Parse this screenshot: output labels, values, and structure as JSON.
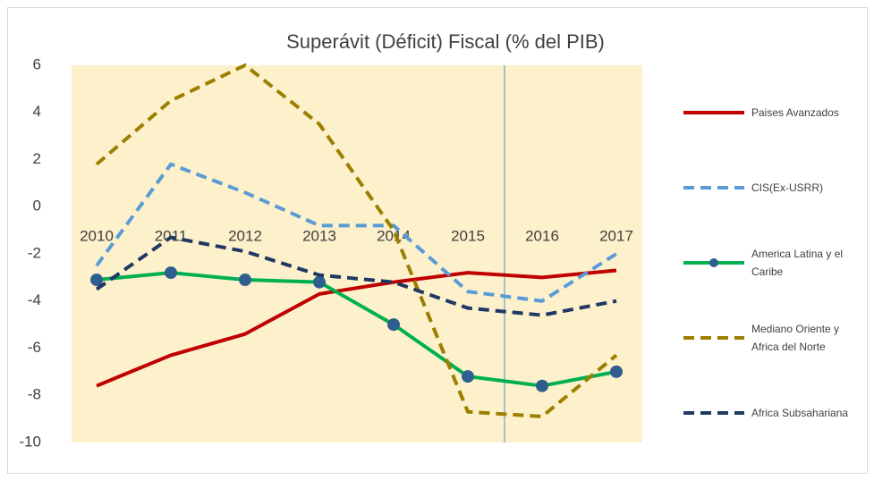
{
  "chart_data": {
    "type": "line",
    "title": "Superávit (Déficit) Fiscal (% del PIB)",
    "categories": [
      "2010",
      "2011",
      "2012",
      "2013",
      "2014",
      "2015",
      "2016",
      "2017"
    ],
    "series": [
      {
        "name": "Paises Avanzados",
        "color": "#c00000",
        "dashed": false,
        "values": [
          -7.6,
          -6.3,
          -5.4,
          -3.7,
          -3.2,
          -2.8,
          -3.0,
          -2.7
        ]
      },
      {
        "name": "CIS(Ex-USRR)",
        "color": "#5b9bd5",
        "dashed": true,
        "values": [
          -2.5,
          1.8,
          0.6,
          -0.8,
          -0.8,
          -3.6,
          -4.0,
          -2.0
        ]
      },
      {
        "name": "America Latina  y el Caribe",
        "color": "#00b050",
        "dashed": false,
        "marker": "circle",
        "marker_color": "#2f5f8f",
        "values": [
          -3.1,
          -2.8,
          -3.1,
          -3.2,
          -5.0,
          -7.2,
          -7.6,
          -7.0
        ]
      },
      {
        "name": "Mediano Oriente y Africa del Norte",
        "color": "#9c7f00",
        "dashed": true,
        "values": [
          1.8,
          4.5,
          6.0,
          3.5,
          -1.0,
          -8.7,
          -8.9,
          -6.3
        ]
      },
      {
        "name": "Africa Subsahariana",
        "color": "#203864",
        "dashed": true,
        "values": [
          -3.5,
          -1.3,
          -1.9,
          -2.9,
          -3.2,
          -4.3,
          -4.6,
          -4.0
        ]
      }
    ],
    "ylim": [
      -10,
      6
    ],
    "yticks": [
      -10,
      -8,
      -6,
      -4,
      -2,
      0,
      2,
      4,
      6
    ],
    "grid": false,
    "legend": "right"
  }
}
